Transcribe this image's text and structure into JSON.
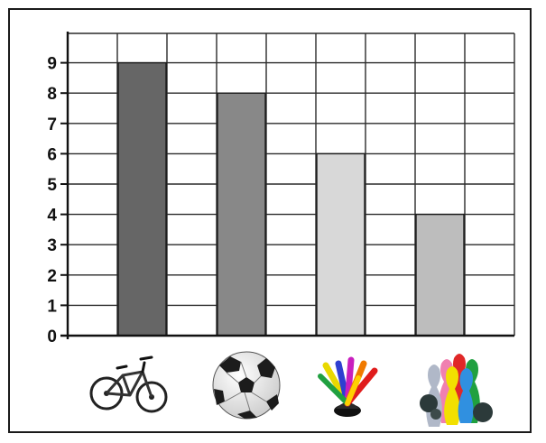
{
  "chart_data": {
    "type": "bar",
    "title": "",
    "xlabel": "",
    "ylabel": "",
    "categories": [
      "bicycle",
      "soccer ball",
      "shuttlecock",
      "bowling pins"
    ],
    "category_labels_visible": false,
    "values": [
      9,
      8,
      6,
      4
    ],
    "ylim": [
      0,
      9
    ],
    "yticks": [
      "0",
      "1",
      "2",
      "3",
      "4",
      "5",
      "6",
      "7",
      "8",
      "9"
    ],
    "grid": true,
    "legend": "none",
    "bar_colors": [
      "#666666",
      "#888888",
      "#d8d8d8",
      "#bdbdbd"
    ],
    "icons": [
      "bicycle-icon",
      "soccer-ball-icon",
      "shuttlecock-icon",
      "bowling-pins-icon"
    ]
  }
}
